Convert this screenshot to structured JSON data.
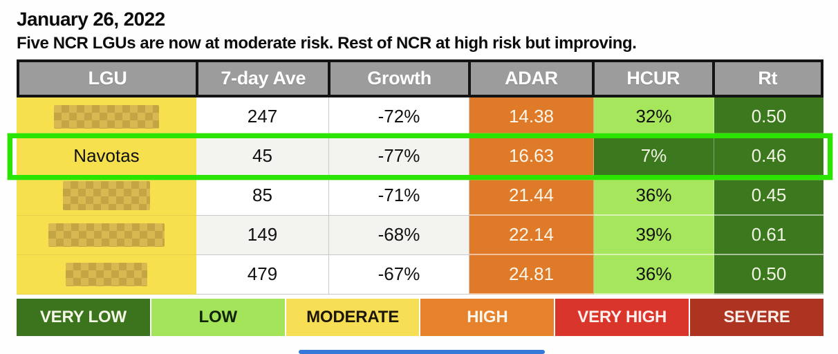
{
  "page": {
    "date_title": "January 26, 2022",
    "subtitle": "Five NCR LGUs are now at moderate risk. Rest of NCR at high risk but improving."
  },
  "table": {
    "columns": [
      "LGU",
      "7-day Ave",
      "Growth",
      "ADAR",
      "HCUR",
      "Rt"
    ],
    "rows": [
      {
        "lgu": "",
        "lgu_redacted": true,
        "seven_day_ave": "247",
        "growth": "-72%",
        "adar": "14.38",
        "hcur": "32%",
        "rt": "0.50",
        "hcur_level": "low",
        "highlighted": false
      },
      {
        "lgu": "Navotas",
        "lgu_redacted": false,
        "seven_day_ave": "45",
        "growth": "-77%",
        "adar": "16.63",
        "hcur": "7%",
        "rt": "0.46",
        "hcur_level": "very_low",
        "highlighted": true
      },
      {
        "lgu": "",
        "lgu_redacted": true,
        "seven_day_ave": "85",
        "growth": "-71%",
        "adar": "21.44",
        "hcur": "36%",
        "rt": "0.45",
        "hcur_level": "low",
        "highlighted": false
      },
      {
        "lgu": "",
        "lgu_redacted": true,
        "seven_day_ave": "149",
        "growth": "-68%",
        "adar": "22.14",
        "hcur": "39%",
        "rt": "0.61",
        "hcur_level": "low",
        "highlighted": false
      },
      {
        "lgu": "",
        "lgu_redacted": true,
        "seven_day_ave": "479",
        "growth": "-67%",
        "adar": "24.81",
        "hcur": "36%",
        "rt": "0.50",
        "hcur_level": "low",
        "highlighted": false
      }
    ]
  },
  "legend": {
    "items": [
      {
        "label": "VERY LOW",
        "color": "#3c731d",
        "text_color": "#ffffff"
      },
      {
        "label": "LOW",
        "color": "#a4e45b",
        "text_color": "#111111"
      },
      {
        "label": "MODERATE",
        "color": "#f6de55",
        "text_color": "#111111"
      },
      {
        "label": "HIGH",
        "color": "#e5822b",
        "text_color": "#ffffff"
      },
      {
        "label": "VERY HIGH",
        "color": "#da352b",
        "text_color": "#ffffff"
      },
      {
        "label": "SEVERE",
        "color": "#ad3420",
        "text_color": "#ffffff"
      }
    ]
  },
  "colors": {
    "header_bg": "#9c9c9c",
    "header_text": "#ffffff",
    "lgu_cell_bg": "#f7e04e",
    "adar_cell_bg": "#df7a28",
    "hcur_low_bg": "#a6e65c",
    "dark_green_bg": "#3b781e",
    "highlight_border": "#2be400",
    "bottom_bar_blue": "#3478d8"
  },
  "chart_data": {
    "type": "table",
    "title": "January 26, 2022",
    "subtitle": "Five NCR LGUs are now at moderate risk. Rest of NCR at high risk but improving.",
    "columns": [
      "LGU",
      "7-day Ave",
      "Growth",
      "ADAR",
      "HCUR",
      "Rt"
    ],
    "rows": [
      {
        "lgu": null,
        "redacted": true,
        "seven_day_ave": 247,
        "growth_pct": -72,
        "adar": 14.38,
        "hcur_pct": 32,
        "rt": 0.5
      },
      {
        "lgu": "Navotas",
        "redacted": false,
        "seven_day_ave": 45,
        "growth_pct": -77,
        "adar": 16.63,
        "hcur_pct": 7,
        "rt": 0.46
      },
      {
        "lgu": null,
        "redacted": true,
        "seven_day_ave": 85,
        "growth_pct": -71,
        "adar": 21.44,
        "hcur_pct": 36,
        "rt": 0.45
      },
      {
        "lgu": null,
        "redacted": true,
        "seven_day_ave": 149,
        "growth_pct": -68,
        "adar": 22.14,
        "hcur_pct": 39,
        "rt": 0.61
      },
      {
        "lgu": null,
        "redacted": true,
        "seven_day_ave": 479,
        "growth_pct": -67,
        "adar": 24.81,
        "hcur_pct": 36,
        "rt": 0.5
      }
    ],
    "highlighted_row": "Navotas",
    "legend": [
      "VERY LOW",
      "LOW",
      "MODERATE",
      "HIGH",
      "VERY HIGH",
      "SEVERE"
    ],
    "notes": "Cell colors encode risk level: yellow LGU = moderate, orange ADAR = high, light green = low, dark green = very low"
  }
}
